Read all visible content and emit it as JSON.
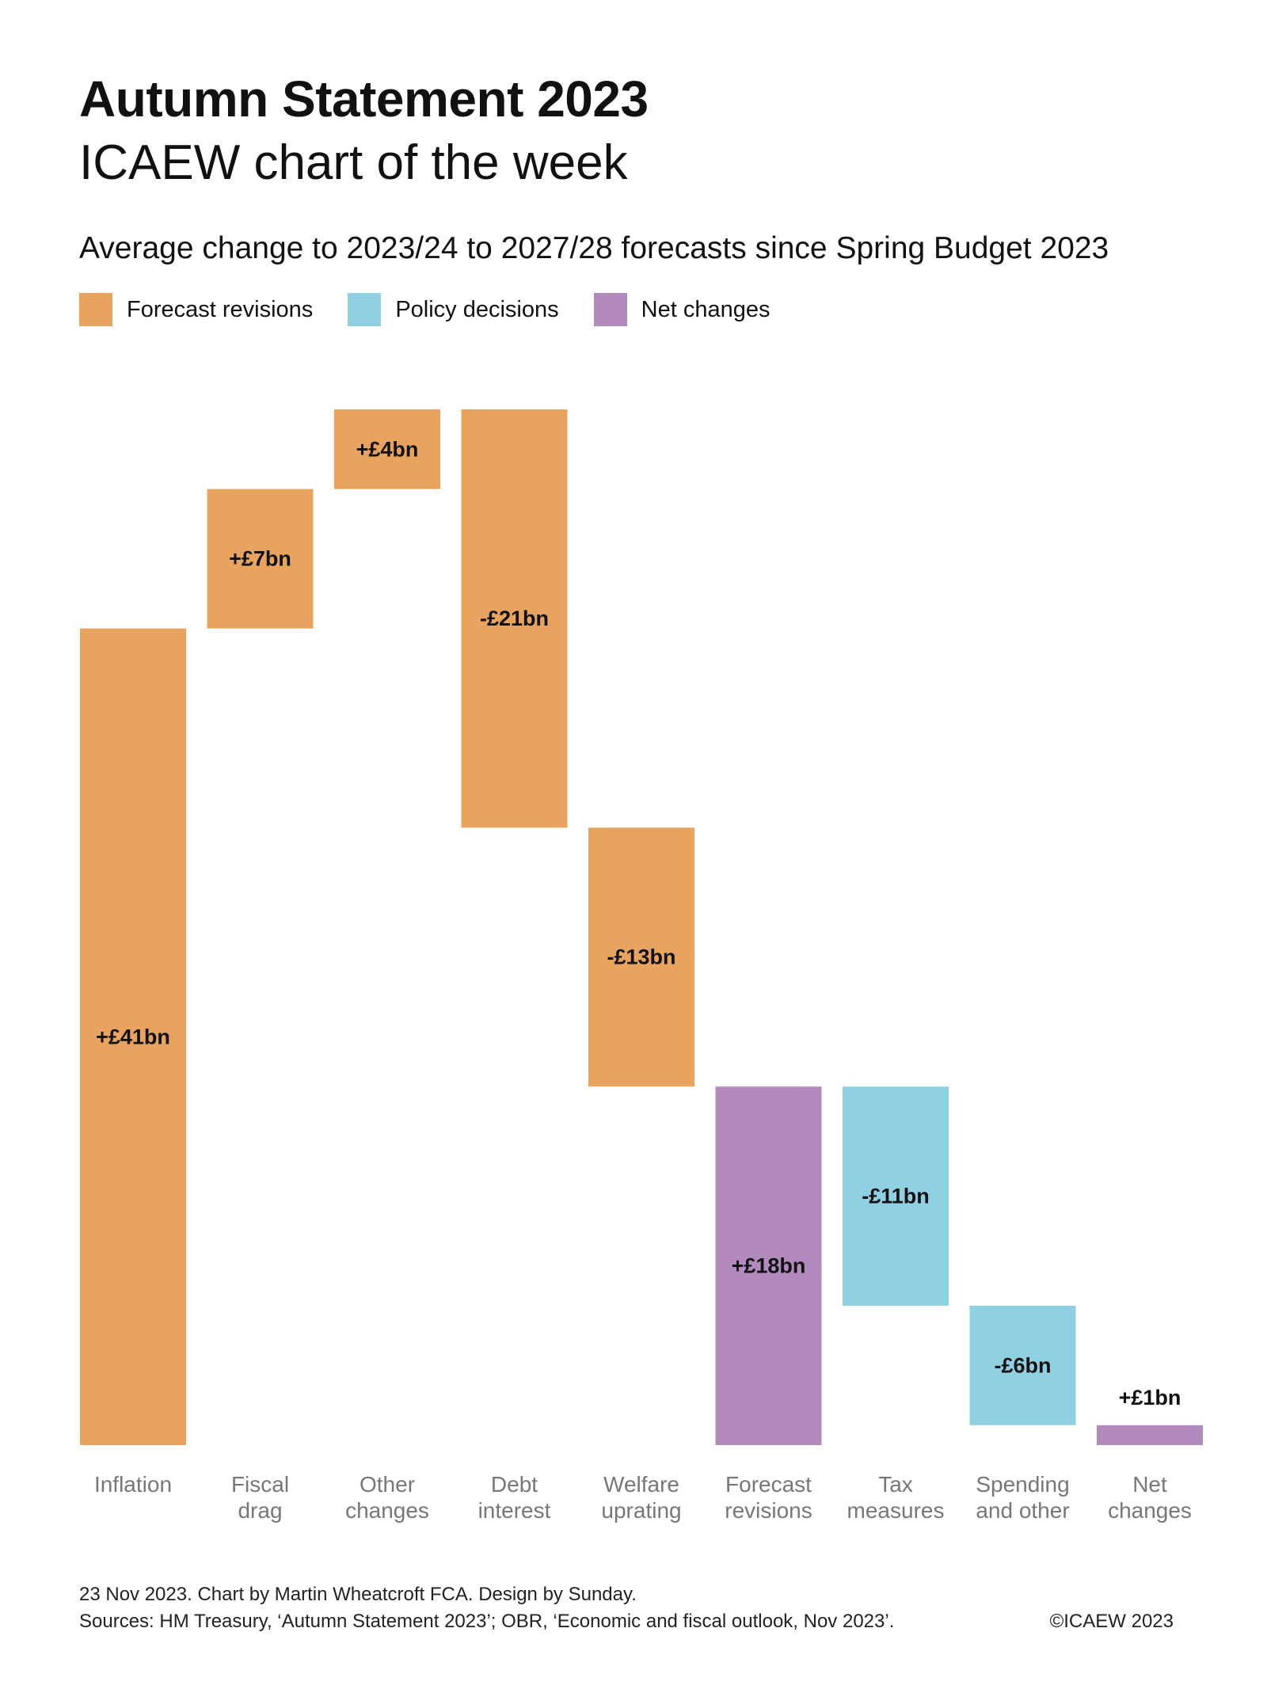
{
  "header": {
    "title": "Autumn Statement 2023",
    "subtitle": "ICAEW chart of the week"
  },
  "colors": {
    "forecast": "#E8A45E",
    "policy": "#8FD1E2",
    "net": "#B38ABD",
    "axis_label": "#777777"
  },
  "legend": [
    {
      "label": "Forecast revisions",
      "color": "#E8A45E"
    },
    {
      "label": "Policy decisions",
      "color": "#8FD1E2"
    },
    {
      "label": "Net changes",
      "color": "#B38ABD"
    }
  ],
  "chart_data": {
    "type": "bar",
    "subtype": "waterfall",
    "title": "Average change to 2023/24 to 2027/28 forecasts since Spring Budget 2023",
    "unit": "£bn",
    "bars": [
      {
        "category": [
          "Inflation"
        ],
        "label": "+£41bn",
        "start": 0,
        "end": 41,
        "group": "forecast"
      },
      {
        "category": [
          "Fiscal",
          "drag"
        ],
        "label": "+£7bn",
        "start": 41,
        "end": 48,
        "group": "forecast"
      },
      {
        "category": [
          "Other",
          "changes"
        ],
        "label": "+£4bn",
        "start": 48,
        "end": 52,
        "group": "forecast"
      },
      {
        "category": [
          "Debt",
          "interest"
        ],
        "label": "-£21bn",
        "start": 52,
        "end": 31,
        "group": "forecast"
      },
      {
        "category": [
          "Welfare",
          "uprating"
        ],
        "label": "-£13bn",
        "start": 31,
        "end": 18,
        "group": "forecast"
      },
      {
        "category": [
          "Forecast",
          "revisions"
        ],
        "label": "+£18bn",
        "start": 0,
        "end": 18,
        "group": "net"
      },
      {
        "category": [
          "Tax",
          "measures"
        ],
        "label": "-£11bn",
        "start": 18,
        "end": 7,
        "group": "policy"
      },
      {
        "category": [
          "Spending",
          "and other"
        ],
        "label": "-£6bn",
        "start": 7,
        "end": 1,
        "group": "policy"
      },
      {
        "category": [
          "Net",
          "changes"
        ],
        "label": "+£1bn",
        "start": 0,
        "end": 1,
        "group": "net"
      }
    ]
  },
  "footer": {
    "line1": "23 Nov 2023.   Chart by Martin Wheatcroft FCA. Design by Sunday.",
    "line2": "Sources: HM Treasury, ‘Autumn Statement 2023’; OBR, ‘Economic and fiscal outlook, Nov 2023’.",
    "copyright": "©ICAEW 2023"
  }
}
